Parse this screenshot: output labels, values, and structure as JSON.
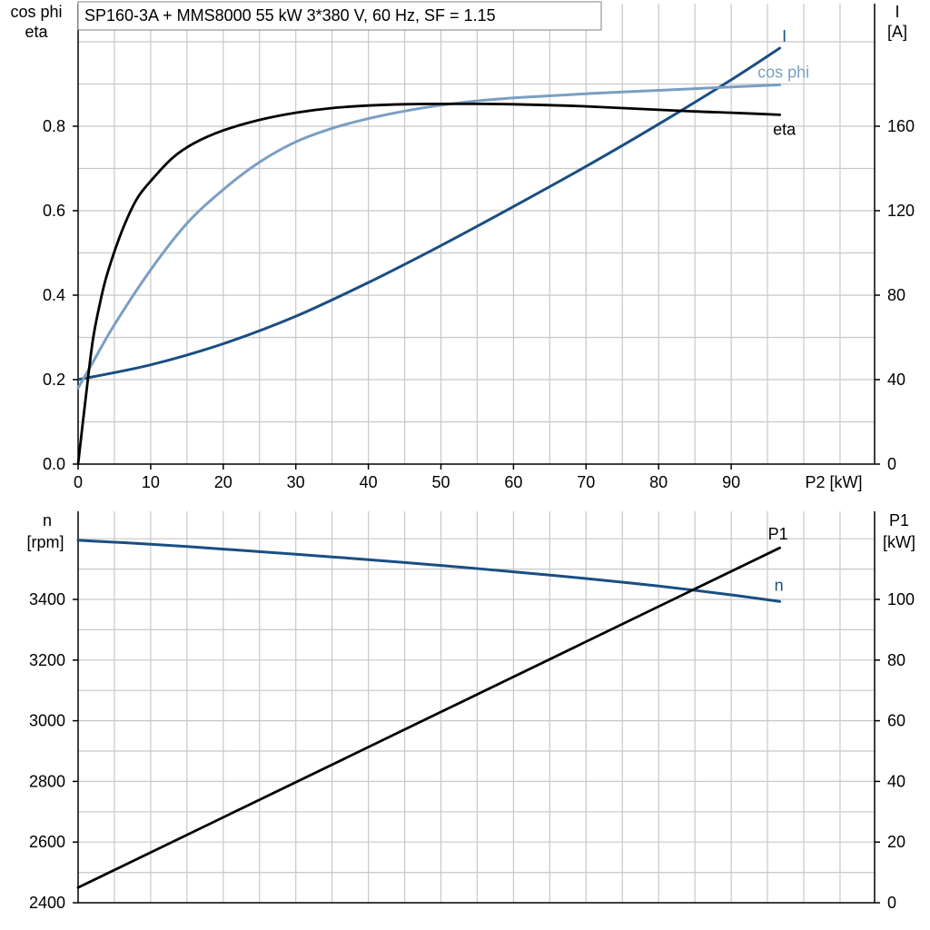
{
  "title": "SP160-3A + MMS8000   55 kW   3*380 V, 60 Hz, SF = 1.15",
  "colors": {
    "eta": "#000000",
    "cos_phi": "#7a9fc2",
    "I": "#1a4e82",
    "n": "#1a4e82",
    "P1": "#000000",
    "grid": "#c8c8c8",
    "axis": "#000000"
  },
  "chart_data": [
    {
      "type": "line",
      "x_label": "P2 [kW]",
      "x_range": [
        0,
        110
      ],
      "x_ticks": [
        0,
        10,
        20,
        30,
        40,
        50,
        60,
        70,
        80,
        90
      ],
      "y_left_label": [
        "cos phi",
        "eta"
      ],
      "y_left_range": [
        0,
        1.0
      ],
      "y_left_ticks": [
        "0.0",
        "0.2",
        "0.4",
        "0.6",
        "0.8"
      ],
      "y_right_label": [
        "I",
        "[A]"
      ],
      "y_right_range": [
        0,
        200
      ],
      "y_right_ticks": [
        "0",
        "40",
        "80",
        "120",
        "160"
      ],
      "grid": true,
      "series": [
        {
          "name": "eta",
          "axis": "left",
          "x": [
            0,
            1,
            2,
            3,
            4,
            6,
            8,
            10,
            13,
            16,
            20,
            25,
            30,
            35,
            40,
            45,
            50,
            55,
            60,
            65,
            70,
            75,
            80,
            85,
            90,
            96.7
          ],
          "y": [
            0.0,
            0.15,
            0.29,
            0.38,
            0.45,
            0.55,
            0.625,
            0.67,
            0.725,
            0.76,
            0.79,
            0.815,
            0.832,
            0.843,
            0.849,
            0.852,
            0.853,
            0.853,
            0.852,
            0.85,
            0.847,
            0.843,
            0.839,
            0.835,
            0.832,
            0.827
          ]
        },
        {
          "name": "cos phi",
          "axis": "left",
          "x": [
            0,
            2,
            5,
            10,
            15,
            20,
            25,
            30,
            35,
            40,
            45,
            50,
            55,
            60,
            65,
            70,
            75,
            80,
            85,
            90,
            96.7
          ],
          "y": [
            0.18,
            0.24,
            0.33,
            0.46,
            0.57,
            0.65,
            0.715,
            0.763,
            0.795,
            0.818,
            0.836,
            0.85,
            0.86,
            0.867,
            0.872,
            0.877,
            0.881,
            0.885,
            0.889,
            0.893,
            0.898
          ]
        },
        {
          "name": "I",
          "axis": "right",
          "x": [
            0,
            10,
            20,
            30,
            40,
            50,
            60,
            70,
            80,
            90,
            96.7
          ],
          "y": [
            40,
            47,
            57,
            70,
            86,
            103.5,
            122,
            141,
            161,
            182,
            197
          ]
        }
      ]
    },
    {
      "type": "line",
      "x_range": [
        0,
        110
      ],
      "x_ticks": [
        0,
        10,
        20,
        30,
        40,
        50,
        60,
        70,
        80,
        90
      ],
      "y_left_label": [
        "n",
        "[rpm]"
      ],
      "y_left_range": [
        2400,
        3700
      ],
      "y_left_ticks": [
        "2400",
        "2600",
        "2800",
        "3000",
        "3200",
        "3400"
      ],
      "y_right_label": [
        "P1",
        "[kW]"
      ],
      "y_right_range": [
        0,
        130
      ],
      "y_right_ticks": [
        "0",
        "20",
        "40",
        "60",
        "80",
        "100"
      ],
      "grid": true,
      "series": [
        {
          "name": "n",
          "axis": "left",
          "x": [
            0,
            10,
            20,
            30,
            40,
            50,
            60,
            70,
            80,
            90,
            96.7
          ],
          "y": [
            3595,
            3582,
            3566,
            3549,
            3531,
            3512,
            3491,
            3469,
            3444,
            3415,
            3393
          ]
        },
        {
          "name": "P1",
          "axis": "right",
          "x": [
            0,
            96.7
          ],
          "y": [
            5,
            117
          ]
        }
      ]
    }
  ]
}
